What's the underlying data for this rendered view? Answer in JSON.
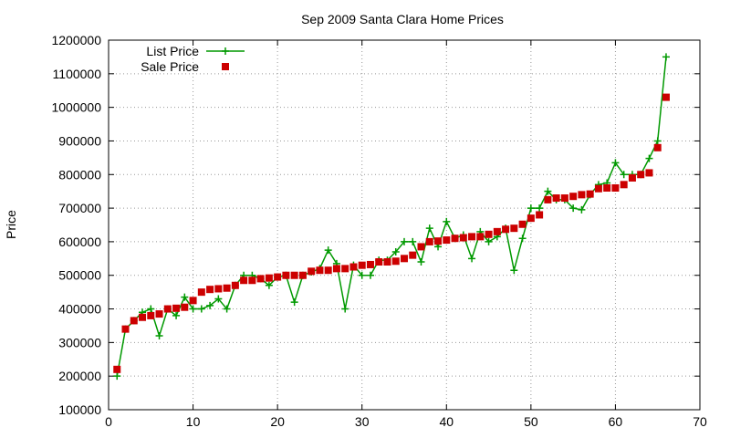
{
  "chart_data": {
    "type": "line",
    "title": "Sep 2009 Santa Clara Home Prices",
    "xlabel": "",
    "ylabel": "Price",
    "xlim": [
      0,
      70
    ],
    "ylim": [
      100000,
      1200000
    ],
    "xticks": [
      0,
      10,
      20,
      30,
      40,
      50,
      60,
      70
    ],
    "yticks": [
      100000,
      200000,
      300000,
      400000,
      500000,
      600000,
      700000,
      800000,
      900000,
      1000000,
      1100000,
      1200000
    ],
    "grid": true,
    "legend_position": "top-left",
    "x": [
      1,
      2,
      3,
      4,
      5,
      6,
      7,
      8,
      9,
      10,
      11,
      12,
      13,
      14,
      15,
      16,
      17,
      18,
      19,
      20,
      21,
      22,
      23,
      24,
      25,
      26,
      27,
      28,
      29,
      30,
      31,
      32,
      33,
      34,
      35,
      36,
      37,
      38,
      39,
      40,
      41,
      42,
      43,
      44,
      45,
      46,
      47,
      48,
      49,
      50,
      51,
      52,
      53,
      54,
      55,
      56,
      57,
      58,
      59,
      60,
      61,
      62,
      63,
      64,
      65,
      66
    ],
    "series": [
      {
        "name": "List Price",
        "style": "linespoints",
        "marker": "plus",
        "color": "#009900",
        "values": [
          200000,
          340000,
          365000,
          390000,
          400000,
          320000,
          400000,
          380000,
          435000,
          400000,
          400000,
          410000,
          430000,
          400000,
          470000,
          500000,
          500000,
          490000,
          470000,
          495000,
          500000,
          420000,
          500000,
          510000,
          520000,
          575000,
          535000,
          400000,
          530000,
          500000,
          500000,
          545000,
          545000,
          570000,
          600000,
          600000,
          540000,
          640000,
          585000,
          660000,
          610000,
          620000,
          550000,
          630000,
          600000,
          615000,
          640000,
          515000,
          610000,
          700000,
          700000,
          750000,
          725000,
          725000,
          700000,
          695000,
          740000,
          770000,
          775000,
          835000,
          800000,
          800000,
          800000,
          848000,
          900000,
          1150000
        ]
      },
      {
        "name": "Sale Price",
        "style": "points",
        "marker": "square",
        "color": "#cc0000",
        "values": [
          220000,
          340000,
          365000,
          375000,
          380000,
          385000,
          400000,
          402000,
          405000,
          425000,
          450000,
          458000,
          460000,
          462000,
          470000,
          485000,
          485000,
          490000,
          492000,
          495000,
          500000,
          500000,
          500000,
          512000,
          515000,
          515000,
          520000,
          520000,
          525000,
          530000,
          532000,
          540000,
          540000,
          542000,
          550000,
          560000,
          585000,
          600000,
          602000,
          605000,
          610000,
          612000,
          615000,
          615000,
          622000,
          630000,
          637000,
          640000,
          652000,
          670000,
          680000,
          725000,
          730000,
          730000,
          735000,
          740000,
          742000,
          758000,
          760000,
          760000,
          770000,
          790000,
          800000,
          805000,
          880000,
          1030000
        ]
      }
    ]
  }
}
